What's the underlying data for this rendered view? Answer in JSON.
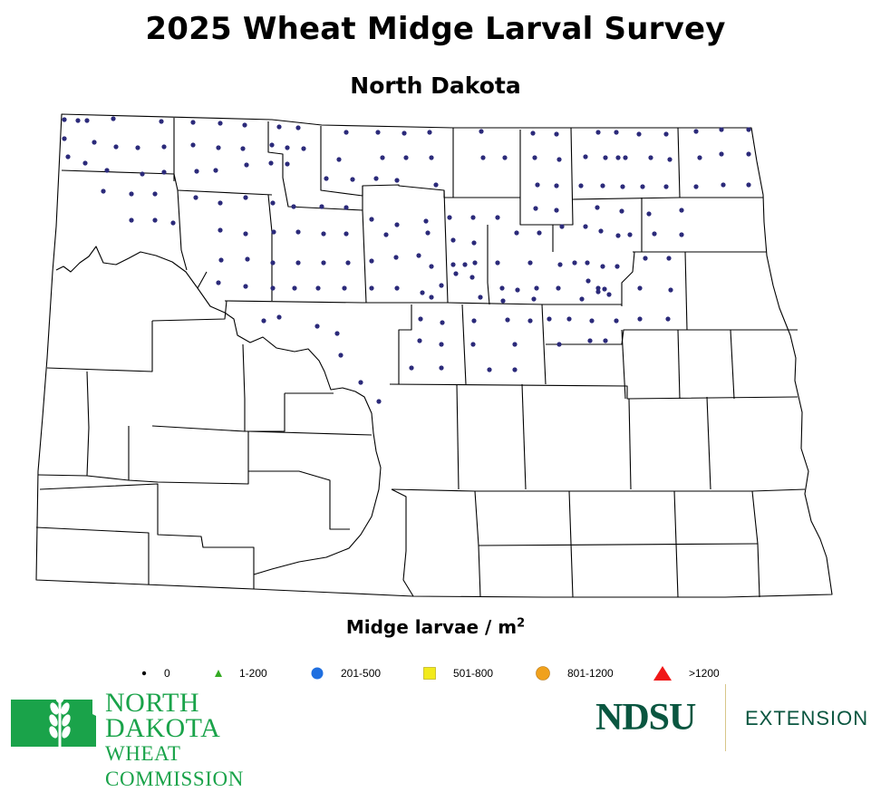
{
  "header": {
    "title": "2025 Wheat Midge Larval Survey",
    "subtitle": "North Dakota"
  },
  "legend": {
    "title_base": "Midge larvae / m",
    "title_sup": "2",
    "items": [
      {
        "label": "0",
        "symbol": "dot",
        "color": "#000000"
      },
      {
        "label": "1-200",
        "symbol": "small-triangle",
        "color": "#33aa22"
      },
      {
        "label": "201-500",
        "symbol": "circle",
        "color": "#1f6fe0"
      },
      {
        "label": "501-800",
        "symbol": "square",
        "color": "#f2ea1c"
      },
      {
        "label": "801-1200",
        "symbol": "circle",
        "color": "#f0a11c"
      },
      {
        "label": ">1200",
        "symbol": "triangle",
        "color": "#f01818"
      }
    ]
  },
  "map": {
    "sample_dot_color": "#2b2a7a",
    "sample_category": "0"
  },
  "logos": {
    "ndwc_line1": "NORTH DAKOTA",
    "ndwc_line2": "WHEAT COMMISSION",
    "ndsu": "NDSU",
    "extension": "EXTENSION"
  },
  "colors": {
    "ndwc_green": "#1aa34a",
    "ndsu_green": "#0a5640"
  }
}
